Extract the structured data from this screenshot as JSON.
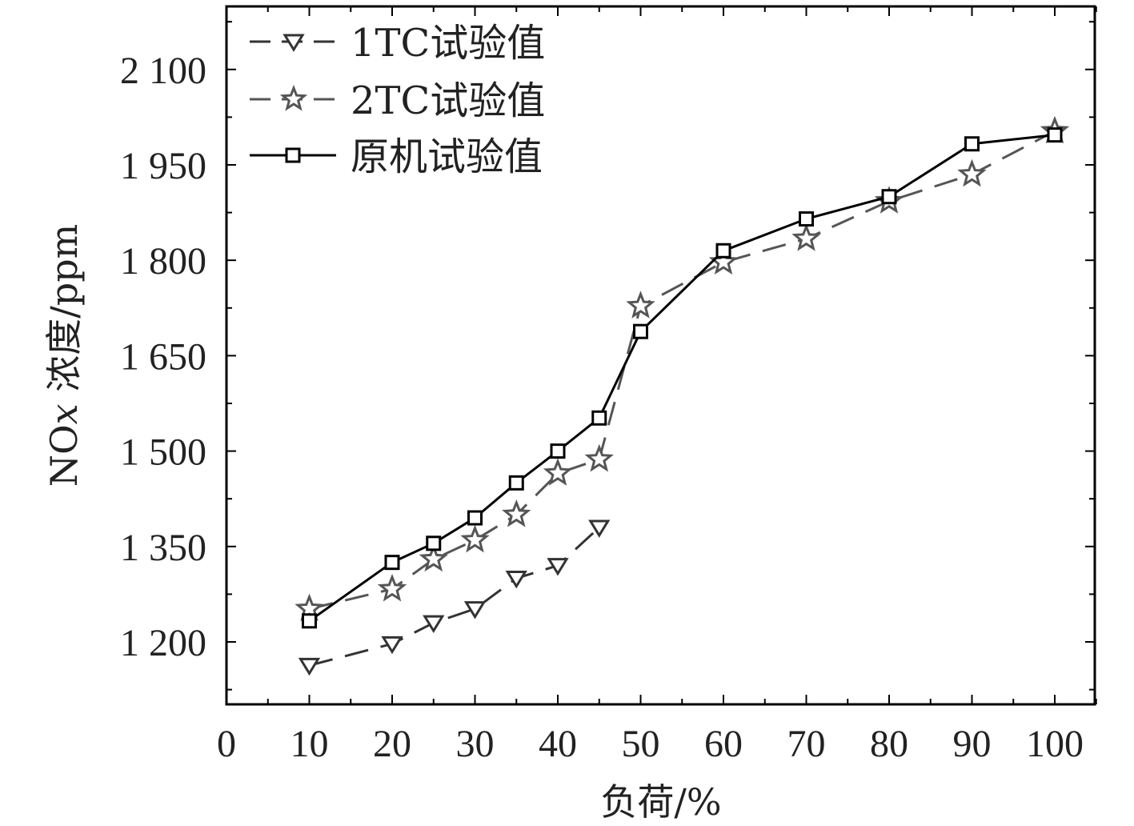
{
  "chart_data": {
    "type": "line",
    "xlabel": "负荷/%",
    "ylabel_prefix": "NO",
    "ylabel_italic": "x",
    "ylabel_suffix": " 浓度/ppm",
    "xlim": [
      0,
      105
    ],
    "ylim": [
      1100,
      2200
    ],
    "xticks": [
      0,
      10,
      20,
      30,
      40,
      50,
      60,
      70,
      80,
      90,
      100
    ],
    "xtick_labels": [
      "0",
      "10",
      "20",
      "30",
      "40",
      "50",
      "60",
      "70",
      "80",
      "90",
      "100"
    ],
    "yticks": [
      1200,
      1350,
      1500,
      1650,
      1800,
      1950,
      2100
    ],
    "ytick_labels": [
      "1 200",
      "1 350",
      "1 500",
      "1 650",
      "1 800",
      "1 950",
      "2 100"
    ],
    "grid": false,
    "legend_position": "top-left",
    "series": [
      {
        "name": "1TC试验值",
        "marker": "triangle-down",
        "line_style": "dashed",
        "color": "#333333",
        "x": [
          10,
          20,
          25,
          30,
          35,
          40,
          45
        ],
        "y": [
          1163,
          1197,
          1230,
          1252,
          1300,
          1320,
          1380
        ]
      },
      {
        "name": "2TC试验值",
        "marker": "star",
        "line_style": "dashed",
        "color": "#555555",
        "x": [
          10,
          20,
          25,
          30,
          35,
          40,
          45,
          50,
          60,
          70,
          80,
          90,
          100
        ],
        "y": [
          1252,
          1283,
          1330,
          1360,
          1400,
          1465,
          1487,
          1728,
          1797,
          1834,
          1893,
          1935,
          2003
        ]
      },
      {
        "name": "原机试验值",
        "marker": "square",
        "line_style": "solid",
        "color": "#000000",
        "x": [
          10,
          20,
          25,
          30,
          35,
          40,
          45,
          50,
          60,
          70,
          80,
          90,
          100
        ],
        "y": [
          1233,
          1325,
          1355,
          1395,
          1450,
          1500,
          1552,
          1688,
          1815,
          1865,
          1900,
          1983,
          1997
        ]
      }
    ]
  }
}
